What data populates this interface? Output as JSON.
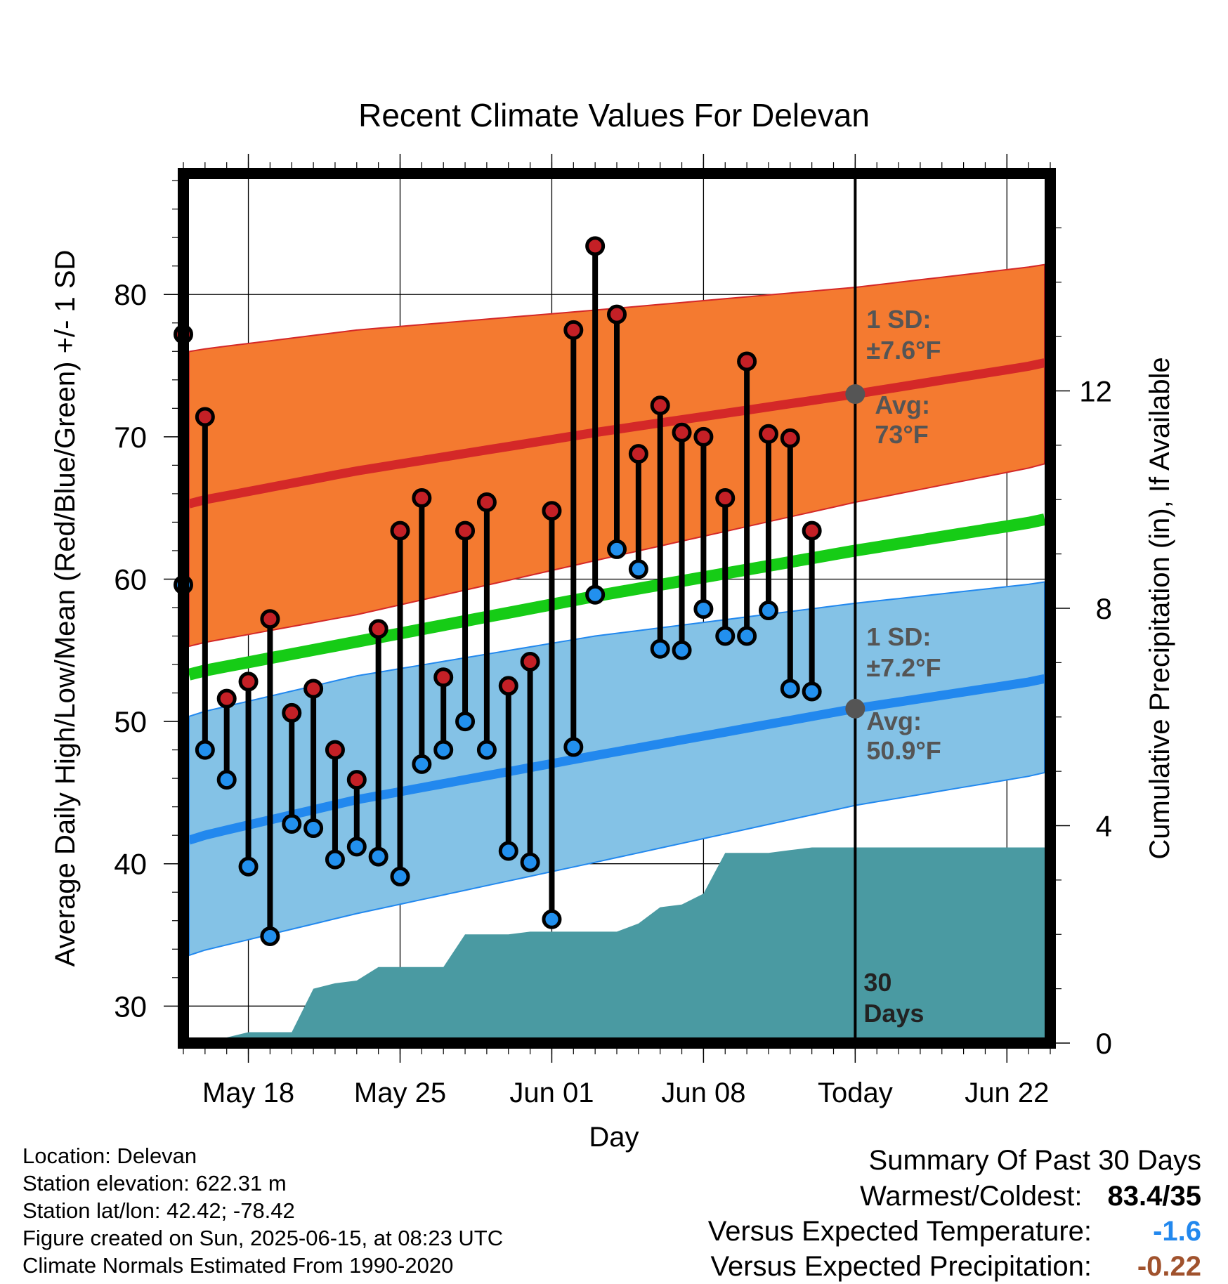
{
  "chart_data": {
    "type": "line",
    "title": "Recent Climate Values For Delevan",
    "xlabel": "Day",
    "ylabel_left": "Average Daily High/Low/Mean (Red/Blue/Green) +/- 1 SD",
    "ylabel_right": "Cumulative Precipitation (in), If Available",
    "x_tick_labels": [
      "May 18",
      "May 25",
      "Jun 01",
      "Jun 08",
      "Today",
      "Jun 22"
    ],
    "y_left_ticks": [
      "30",
      "40",
      "50",
      "60",
      "70",
      "80"
    ],
    "y_right_ticks": [
      "0",
      "4",
      "8",
      "12"
    ],
    "ylim_left": [
      27.4,
      88.5
    ],
    "ylim_right": [
      0,
      16
    ],
    "x_start": "2025-05-15",
    "x_end": "2025-06-24",
    "grid": true,
    "today": "2025-06-15",
    "days": [
      "2025-05-15",
      "2025-05-16",
      "2025-05-17",
      "2025-05-18",
      "2025-05-19",
      "2025-05-20",
      "2025-05-21",
      "2025-05-22",
      "2025-05-23",
      "2025-05-24",
      "2025-05-25",
      "2025-05-26",
      "2025-05-27",
      "2025-05-28",
      "2025-05-29",
      "2025-05-30",
      "2025-05-31",
      "2025-06-01",
      "2025-06-02",
      "2025-06-03",
      "2025-06-04",
      "2025-06-05",
      "2025-06-06",
      "2025-06-07",
      "2025-06-08",
      "2025-06-09",
      "2025-06-10",
      "2025-06-11",
      "2025-06-12",
      "2025-06-13",
      "2025-06-14"
    ],
    "highs": [
      77.2,
      71.4,
      51.6,
      52.8,
      57.2,
      50.6,
      52.3,
      48.0,
      45.9,
      56.5,
      63.4,
      65.7,
      53.1,
      63.4,
      65.4,
      52.5,
      54.2,
      64.8,
      77.5,
      83.4,
      78.6,
      68.8,
      72.2,
      70.3,
      70.0,
      65.7,
      75.3,
      70.2,
      69.9,
      63.4,
      null
    ],
    "lows": [
      59.6,
      48.0,
      45.9,
      39.8,
      34.9,
      42.8,
      42.5,
      40.3,
      41.2,
      40.5,
      39.1,
      47.0,
      48.0,
      50.0,
      48.0,
      40.9,
      40.1,
      36.1,
      48.2,
      58.9,
      62.1,
      60.7,
      55.1,
      55.0,
      57.9,
      56.0,
      56.0,
      57.8,
      52.3,
      52.1,
      null
    ],
    "normals": {
      "dates": [
        "2025-05-14",
        "2025-05-23",
        "2025-06-03",
        "2025-06-15",
        "2025-06-24"
      ],
      "high_mean": [
        65.0,
        67.6,
        70.3,
        73.0,
        75.2
      ],
      "high_upper": [
        75.8,
        77.5,
        78.9,
        80.5,
        82.1
      ],
      "high_lower": [
        55.0,
        57.5,
        61.3,
        65.4,
        68.1
      ],
      "mean": [
        53.0,
        55.6,
        58.8,
        62.0,
        64.2
      ],
      "low_mean": [
        41.3,
        44.5,
        47.6,
        50.9,
        53.0
      ],
      "low_upper": [
        50.0,
        53.2,
        56.0,
        58.3,
        59.8
      ],
      "low_lower": [
        33.2,
        36.5,
        40.1,
        44.1,
        46.4
      ]
    },
    "precip": {
      "dates": [
        "2025-05-15",
        "2025-05-16",
        "2025-05-17",
        "2025-05-18",
        "2025-05-19",
        "2025-05-20",
        "2025-05-21",
        "2025-05-22",
        "2025-05-23",
        "2025-05-24",
        "2025-05-25",
        "2025-05-26",
        "2025-05-27",
        "2025-05-28",
        "2025-05-29",
        "2025-05-30",
        "2025-05-31",
        "2025-06-01",
        "2025-06-02",
        "2025-06-03",
        "2025-06-04",
        "2025-06-05",
        "2025-06-06",
        "2025-06-07",
        "2025-06-08",
        "2025-06-09",
        "2025-06-10",
        "2025-06-11",
        "2025-06-12",
        "2025-06-13",
        "2025-06-14",
        "2025-06-24"
      ],
      "cum": [
        0.0,
        0.0,
        0.1,
        0.2,
        0.2,
        0.2,
        1.0,
        1.1,
        1.15,
        1.4,
        1.4,
        1.4,
        1.4,
        2.0,
        2.0,
        2.0,
        2.05,
        2.05,
        2.05,
        2.05,
        2.05,
        2.2,
        2.5,
        2.55,
        2.75,
        3.5,
        3.5,
        3.5,
        3.55,
        3.6,
        3.6,
        3.6
      ]
    },
    "annotations": {
      "high_sd": "1 SD:",
      "high_sd_val": "±7.6°F",
      "high_avg_label": "Avg:",
      "high_avg_val": "73°F",
      "high_avg": 73.0,
      "low_sd": "1 SD:",
      "low_sd_val": "±7.2°F",
      "low_avg_label": "Avg:",
      "low_avg_val": "50.9°F",
      "low_avg": 50.9,
      "period_num": "30",
      "period_word": "Days"
    },
    "colors": {
      "high_band": "#f47a30",
      "high_line": "#d42828",
      "mean_line": "#16cc16",
      "low_band": "#84c2e6",
      "low_line": "#2288ee",
      "precip": "#4a9aa2",
      "high_dot": "#c42026",
      "low_dot": "#2290ee",
      "annotation_text": "#555555"
    }
  },
  "info": {
    "location": "Location: Delevan",
    "elevation": "Station elevation: 622.31 m",
    "latlon": "Station lat/lon: 42.42; -78.42",
    "created": "Figure created on Sun, 2025-06-15, at 08:23 UTC",
    "normals": "Climate Normals Estimated From 1990-2020"
  },
  "summary": {
    "title": "Summary Of Past 30 Days",
    "warm_cold_label": "Warmest/Coldest:",
    "warm_cold_value": "83.4/35",
    "temp_label": "Versus Expected Temperature:",
    "temp_value": "-1.6",
    "temp_color": "#2288ee",
    "precip_label": "Versus Expected Precipitation:",
    "precip_value": "-0.22",
    "precip_color": "#a0522d"
  }
}
